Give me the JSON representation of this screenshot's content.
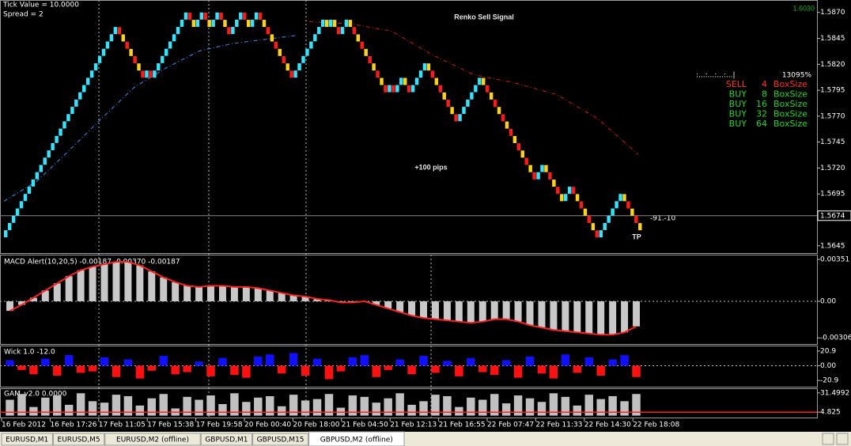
{
  "header": {
    "lines": [
      "Tick Value = 10.0000",
      "Spread = 2"
    ]
  },
  "price_pane": {
    "ylim": [
      1.5638,
      1.5882
    ],
    "yticks": [
      {
        "value": 1.587,
        "label": "1.5870"
      },
      1.5845,
      {
        "value": 1.582,
        "label": "1.5820"
      },
      1.5795,
      {
        "value": 1.577,
        "label": "1.5770"
      },
      1.5745,
      {
        "value": 1.572,
        "label": "1.5720"
      },
      1.5695,
      1.5645
    ],
    "current_price": 1.5674,
    "up_color": "#33e4ff",
    "down_color": "#ff1a1a",
    "down_alt_color": "#ffd21a",
    "bricks": [
      1.566,
      1.5667,
      1.5674,
      1.5681,
      1.5688,
      1.5695,
      1.5702,
      1.5709,
      1.5716,
      1.5723,
      1.573,
      1.5737,
      1.5744,
      1.5751,
      1.5758,
      1.5765,
      1.5772,
      1.5779,
      1.5786,
      1.5793,
      1.58,
      1.5807,
      1.5814,
      1.5821,
      1.5828,
      1.5835,
      1.5842,
      1.5849,
      1.5856,
      1.5849,
      1.5842,
      1.5835,
      1.5828,
      1.5821,
      1.5814,
      1.5807,
      1.5814,
      1.5807,
      1.5814,
      1.5821,
      1.5828,
      1.5835,
      1.5842,
      1.5849,
      1.5856,
      1.5863,
      1.587,
      1.5863,
      1.5856,
      1.5863,
      1.587,
      1.5863,
      1.5856,
      1.5863,
      1.587,
      1.5863,
      1.5856,
      1.5849,
      1.5856,
      1.5863,
      1.587,
      1.5863,
      1.5856,
      1.5863,
      1.587,
      1.5863,
      1.5856,
      1.5849,
      1.5842,
      1.5835,
      1.5828,
      1.5821,
      1.5814,
      1.5807,
      1.5814,
      1.5821,
      1.5828,
      1.5835,
      1.5842,
      1.5849,
      1.5856,
      1.5863,
      1.5856,
      1.5863,
      1.5856,
      1.5849,
      1.5856,
      1.5863,
      1.5856,
      1.5849,
      1.5842,
      1.5835,
      1.5828,
      1.5821,
      1.5814,
      1.5807,
      1.58,
      1.5793,
      1.58,
      1.5793,
      1.58,
      1.5807,
      1.58,
      1.5793,
      1.58,
      1.5807,
      1.5814,
      1.5821,
      1.5814,
      1.5807,
      1.58,
      1.5793,
      1.5786,
      1.5779,
      1.5772,
      1.5765,
      1.5772,
      1.5779,
      1.5786,
      1.5793,
      1.58,
      1.5807,
      1.58,
      1.5793,
      1.5786,
      1.5779,
      1.5772,
      1.5765,
      1.5758,
      1.5751,
      1.5744,
      1.5737,
      1.573,
      1.5723,
      1.5716,
      1.5709,
      1.5716,
      1.5723,
      1.5716,
      1.5709,
      1.5702,
      1.5695,
      1.5688,
      1.5695,
      1.5702,
      1.5695,
      1.5688,
      1.5681,
      1.5674,
      1.5667,
      1.566,
      1.5653,
      1.566,
      1.5667,
      1.5674,
      1.5681,
      1.5688,
      1.5695,
      1.5688,
      1.5681,
      1.5674,
      1.5667,
      1.566
    ],
    "ma_fast": {
      "color": "#3a8cff",
      "values": [
        1.5688,
        1.5707,
        1.5737,
        1.5768,
        1.5798,
        1.5817,
        1.5833,
        1.584,
        1.5844,
        1.5848
      ]
    },
    "ma_slow": {
      "color": "#e01010",
      "values": [
        1.5861,
        1.5859,
        1.5852,
        1.5829,
        1.581,
        1.5802,
        1.5791,
        1.5768,
        1.5733
      ]
    }
  },
  "annotations": {
    "signal": "Renko Sell Signal",
    "pips": "+100 pips",
    "tp": "TP",
    "level": "-91.-10",
    "balance": "1.6030"
  },
  "box_panel": {
    "header": ":...:...:...:...|",
    "percent": "13095%",
    "rows": [
      {
        "side": "SELL",
        "n": 4,
        "unit": "BoxSize",
        "color": "#ff2a2a"
      },
      {
        "side": "BUY",
        "n": 8,
        "unit": "BoxSize",
        "color": "#22d622"
      },
      {
        "side": "BUY",
        "n": 16,
        "unit": "BoxSize",
        "color": "#22d622"
      },
      {
        "side": "BUY",
        "n": 32,
        "unit": "BoxSize",
        "color": "#22d622"
      },
      {
        "side": "BUY",
        "n": 64,
        "unit": "BoxSize",
        "color": "#22d622"
      }
    ]
  },
  "macd": {
    "label": "MACD Alert(10,20,5) -0.00187 -0.00370 -0.00187",
    "ylim": [
      -0.00364,
      0.00384
    ],
    "yticks": [
      0.00351,
      {
        "value": 0,
        "label": "0.00"
      },
      -0.00306
    ],
    "color": "#c8c8c8",
    "line_color": "#ff2020",
    "values": [
      -0.0008,
      -0.0003,
      0.0003,
      0.0009,
      0.0015,
      0.0021,
      0.0026,
      0.0029,
      0.0031,
      0.0033,
      0.0033,
      0.003,
      0.0025,
      0.002,
      0.0016,
      0.0013,
      0.0012,
      0.0013,
      0.0013,
      0.0012,
      0.0012,
      0.0011,
      0.0009,
      0.0007,
      0.0005,
      0.0004,
      0.0002,
      0.0001,
      -0.0001,
      -0.0001,
      0,
      -0.0003,
      -0.0006,
      -0.0009,
      -0.0012,
      -0.0014,
      -0.0015,
      -0.0016,
      -0.0017,
      -0.0018,
      -0.0017,
      -0.0015,
      -0.0015,
      -0.0017,
      -0.002,
      -0.0022,
      -0.0024,
      -0.0025,
      -0.0026,
      -0.0027,
      -0.0028,
      -0.0028,
      -0.0026,
      -0.0021
    ]
  },
  "wick": {
    "label": "Wick 1.0 -12.0",
    "ylim": [
      -29.7,
      27.5
    ],
    "yticks": [
      20.9,
      {
        "value": 0,
        "label": "0.00"
      },
      -20.9
    ],
    "up_color": "#1010ff",
    "down_color": "#ff1010",
    "values": [
      8,
      -6,
      -12,
      10,
      -14,
      15,
      -10,
      -8,
      12,
      -16,
      9,
      -18,
      -7,
      14,
      -12,
      -9,
      6,
      -15,
      11,
      -13,
      -17,
      13,
      16,
      -11,
      18,
      -14,
      10,
      -19,
      -8,
      12,
      15,
      -16,
      -6,
      9,
      -12,
      14,
      -10,
      7,
      -15,
      11,
      -9,
      -13,
      8,
      -17,
      13,
      -11,
      -18,
      16,
      -10,
      12,
      -14,
      9,
      15,
      -16
    ]
  },
  "gam": {
    "label": "GAM_v2.0 0.0000",
    "ylim": [
      -2.64,
      36.83
    ],
    "yticks": [
      31.4992,
      4.825
    ],
    "color": "#c0c0c0",
    "level_color": "#ff2020",
    "values": [
      22,
      30,
      12,
      25,
      28,
      15,
      31,
      20,
      18,
      29,
      27,
      14,
      24,
      30,
      10,
      26,
      22,
      28,
      16,
      31,
      19,
      25,
      27,
      13,
      29,
      21,
      23,
      30,
      11,
      28,
      26,
      18,
      24,
      31,
      15,
      20,
      29,
      27,
      12,
      25,
      22,
      30,
      17,
      28,
      24,
      19,
      31,
      26,
      14,
      29,
      23,
      27,
      20,
      30
    ]
  },
  "time_axis": [
    "16 Feb 2012",
    "16 Feb 17:26",
    "17 Feb 11:05",
    "17 Feb 15:38",
    "17 Feb 19:58",
    "20 Feb 00:40",
    "20 Feb 18:00",
    "21 Feb 04:50",
    "21 Feb 12:13",
    "21 Feb 16:55",
    "22 Feb 07:47",
    "22 Feb 11:33",
    "22 Feb 14:30",
    "22 Feb 18:08"
  ],
  "tabs": {
    "items": [
      "EURUSD,M1",
      "EURUSD,M5",
      "EURUSD,M2 (offline)",
      "GBPUSD,M1",
      "GBPUSD,M15",
      "GBPUSD,M2 (offline)"
    ],
    "active": 5
  }
}
